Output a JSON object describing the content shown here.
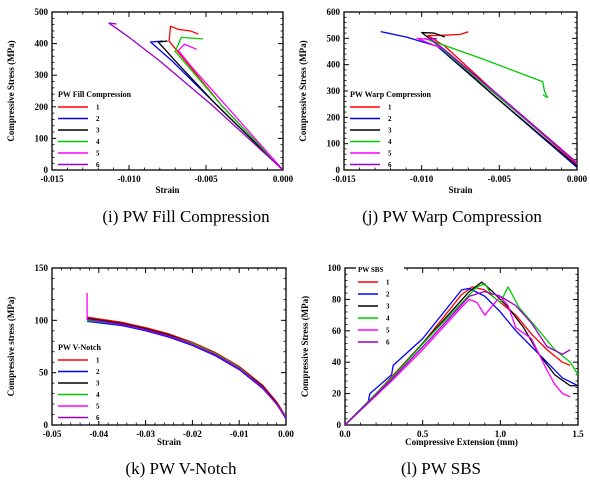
{
  "chart_data": [
    {
      "type": "line",
      "caption": "(i) PW Fill Compression",
      "legend_title": "PW Fill Compression",
      "xlabel": "Strain",
      "ylabel": "Compressive Stress (MPa)",
      "xlim": [
        -0.015,
        0.0
      ],
      "ylim": [
        0,
        500
      ],
      "xticks": [
        "-0.015",
        "-0.010",
        "-0.005",
        "0.000"
      ],
      "yticks": [
        "0",
        "100",
        "200",
        "300",
        "400",
        "500"
      ],
      "series": [
        {
          "name": "1",
          "color": "#ff0000",
          "points": [
            [
              0,
              0
            ],
            [
              -0.004,
              205
            ],
            [
              -0.0065,
              355
            ],
            [
              -0.0074,
              408
            ],
            [
              -0.0073,
              455
            ],
            [
              -0.0068,
              445
            ],
            [
              -0.006,
              440
            ],
            [
              -0.0055,
              430
            ]
          ]
        },
        {
          "name": "2",
          "color": "#0000ff",
          "points": [
            [
              0,
              0
            ],
            [
              -0.0045,
              215
            ],
            [
              -0.0072,
              345
            ],
            [
              -0.0086,
              405
            ],
            [
              -0.0078,
              408
            ]
          ]
        },
        {
          "name": "3",
          "color": "#000000",
          "points": [
            [
              0,
              0
            ],
            [
              -0.0044,
              210
            ],
            [
              -0.0068,
              335
            ],
            [
              -0.0081,
              405
            ],
            [
              -0.0075,
              408
            ]
          ]
        },
        {
          "name": "4",
          "color": "#00cc00",
          "points": [
            [
              0,
              0
            ],
            [
              -0.004,
              205
            ],
            [
              -0.0062,
              330
            ],
            [
              -0.007,
              375
            ],
            [
              -0.0066,
              420
            ],
            [
              -0.0062,
              418
            ],
            [
              -0.0052,
              415
            ]
          ]
        },
        {
          "name": "5",
          "color": "#ff00ff",
          "points": [
            [
              0,
              0
            ],
            [
              -0.0036,
              198
            ],
            [
              -0.006,
              330
            ],
            [
              -0.0068,
              378
            ],
            [
              -0.0064,
              398
            ],
            [
              -0.0056,
              382
            ]
          ]
        },
        {
          "name": "6",
          "color": "#9900cc",
          "points": [
            [
              0,
              0
            ],
            [
              -0.0046,
              205
            ],
            [
              -0.008,
              345
            ],
            [
              -0.01,
              420
            ],
            [
              -0.0113,
              465
            ],
            [
              -0.0108,
              462
            ]
          ]
        }
      ]
    },
    {
      "type": "line",
      "caption": "(j) PW Warp Compression",
      "legend_title": "PW Warp Compression",
      "xlabel": "Strain",
      "ylabel": "Compressive Stress (MPa)",
      "xlim": [
        -0.015,
        0.0
      ],
      "ylim": [
        0,
        600
      ],
      "xticks": [
        "-0.015",
        "-0.010",
        "-0.005",
        "0.000"
      ],
      "yticks": [
        "0",
        "100",
        "200",
        "300",
        "400",
        "500",
        "600"
      ],
      "series": [
        {
          "name": "1",
          "color": "#ff0000",
          "points": [
            [
              0,
              20
            ],
            [
              -0.005,
              280
            ],
            [
              -0.0085,
              470
            ],
            [
              -0.0096,
              510
            ],
            [
              -0.0085,
              512
            ],
            [
              -0.0075,
              515
            ],
            [
              -0.007,
              525
            ]
          ]
        },
        {
          "name": "2",
          "color": "#0000ff",
          "points": [
            [
              0,
              10
            ],
            [
              -0.005,
              265
            ],
            [
              -0.009,
              470
            ],
            [
              -0.011,
              505
            ],
            [
              -0.0126,
              525
            ],
            [
              -0.012,
              518
            ]
          ]
        },
        {
          "name": "3",
          "color": "#000000",
          "points": [
            [
              0,
              15
            ],
            [
              -0.0052,
              275
            ],
            [
              -0.0092,
              485
            ],
            [
              -0.01,
              522
            ],
            [
              -0.0092,
              520
            ],
            [
              -0.0085,
              505
            ]
          ]
        },
        {
          "name": "4",
          "color": "#00cc00",
          "points": [
            [
              0,
              25
            ],
            [
              -0.0052,
              285
            ],
            [
              -0.0092,
              485
            ],
            [
              -0.0098,
              500
            ],
            [
              -0.006,
              420
            ],
            [
              -0.0022,
              335
            ],
            [
              -0.0021,
              300
            ],
            [
              -0.0019,
              275
            ],
            [
              -0.0022,
              285
            ]
          ]
        },
        {
          "name": "5",
          "color": "#ff00ff",
          "points": [
            [
              0,
              25
            ],
            [
              -0.0048,
              270
            ],
            [
              -0.0086,
              460
            ],
            [
              -0.0103,
              500
            ],
            [
              -0.0094,
              495
            ]
          ]
        },
        {
          "name": "6",
          "color": "#9900cc",
          "points": [
            [
              0,
              28
            ],
            [
              -0.005,
              282
            ],
            [
              -0.0088,
              470
            ],
            [
              -0.0095,
              500
            ],
            [
              -0.009,
              498
            ]
          ]
        }
      ]
    },
    {
      "type": "line",
      "caption": "(k) PW V-Notch",
      "legend_title": "PW V-Notch",
      "xlabel": "Strain",
      "ylabel": "Compressive stress (MPa)",
      "xlim": [
        -0.05,
        0.0
      ],
      "ylim": [
        0,
        150
      ],
      "xticks": [
        "-0.05",
        "-0.04",
        "-0.03",
        "-0.02",
        "-0.01",
        "0.00"
      ],
      "yticks": [
        "0",
        "50",
        "100",
        "150"
      ],
      "series": [
        {
          "name": "1",
          "color": "#ff0000",
          "points": [
            [
              -0.0425,
              103
            ],
            [
              -0.035,
              98
            ],
            [
              -0.03,
              93
            ],
            [
              -0.025,
              87
            ],
            [
              -0.02,
              79
            ],
            [
              -0.015,
              69
            ],
            [
              -0.01,
              56
            ],
            [
              -0.005,
              38
            ],
            [
              -0.002,
              22
            ],
            [
              0,
              8
            ]
          ]
        },
        {
          "name": "2",
          "color": "#0000ff",
          "points": [
            [
              -0.0425,
              99
            ],
            [
              -0.035,
              95
            ],
            [
              -0.03,
              90
            ],
            [
              -0.025,
              84
            ],
            [
              -0.02,
              76
            ],
            [
              -0.015,
              66
            ],
            [
              -0.01,
              53
            ],
            [
              -0.005,
              35
            ],
            [
              -0.002,
              20
            ],
            [
              0,
              6
            ]
          ]
        },
        {
          "name": "3",
          "color": "#000000",
          "points": [
            [
              -0.0425,
              102
            ],
            [
              -0.035,
              97
            ],
            [
              -0.03,
              92
            ],
            [
              -0.025,
              86
            ],
            [
              -0.02,
              78
            ],
            [
              -0.015,
              68
            ],
            [
              -0.01,
              55
            ],
            [
              -0.005,
              37
            ],
            [
              -0.002,
              21
            ],
            [
              0,
              7
            ]
          ]
        },
        {
          "name": "4",
          "color": "#00cc00",
          "points": [
            [
              -0.0425,
              100
            ],
            [
              -0.035,
              96
            ],
            [
              -0.03,
              91
            ],
            [
              -0.025,
              85
            ],
            [
              -0.02,
              78
            ],
            [
              -0.015,
              68
            ],
            [
              -0.01,
              55
            ],
            [
              -0.005,
              36
            ],
            [
              -0.002,
              20
            ],
            [
              0,
              8
            ]
          ]
        },
        {
          "name": "5",
          "color": "#ff00ff",
          "points": [
            [
              -0.0425,
              126
            ],
            [
              -0.0425,
              101
            ],
            [
              -0.035,
              96
            ],
            [
              -0.03,
              91
            ],
            [
              -0.025,
              85
            ],
            [
              -0.02,
              77
            ],
            [
              -0.015,
              67
            ],
            [
              -0.01,
              54
            ],
            [
              -0.005,
              36
            ],
            [
              -0.002,
              20
            ],
            [
              0,
              7
            ]
          ]
        },
        {
          "name": "6",
          "color": "#9900cc",
          "points": [
            [
              -0.0425,
              101
            ],
            [
              -0.035,
              96
            ],
            [
              -0.03,
              91
            ],
            [
              -0.025,
              85
            ],
            [
              -0.02,
              77
            ],
            [
              -0.015,
              67
            ],
            [
              -0.01,
              54
            ],
            [
              -0.005,
              36
            ],
            [
              -0.002,
              20
            ],
            [
              0,
              7
            ]
          ]
        }
      ]
    },
    {
      "type": "line",
      "caption": "(l) PW SBS",
      "legend_title": "PW SBS",
      "xlabel": "Compressive Extension (mm)",
      "ylabel": "Compressive Stress (MPa)",
      "xlim": [
        0,
        1.5
      ],
      "ylim": [
        0,
        100
      ],
      "xticks": [
        "0.0",
        "0.5",
        "1.0",
        "1.5"
      ],
      "yticks": [
        "0",
        "20",
        "40",
        "60",
        "80",
        "100"
      ],
      "series": [
        {
          "name": "1",
          "color": "#ff0000",
          "points": [
            [
              0,
              0
            ],
            [
              0.2,
              20
            ],
            [
              0.5,
              52
            ],
            [
              0.75,
              83
            ],
            [
              0.82,
              88
            ],
            [
              0.9,
              86
            ],
            [
              1.0,
              78
            ],
            [
              1.1,
              70
            ],
            [
              1.2,
              58
            ],
            [
              1.3,
              48
            ],
            [
              1.4,
              40
            ],
            [
              1.45,
              38
            ]
          ]
        },
        {
          "name": "2",
          "color": "#0000ff",
          "points": [
            [
              0,
              0
            ],
            [
              0.15,
              15
            ],
            [
              0.16,
              20
            ],
            [
              0.3,
              32
            ],
            [
              0.31,
              38
            ],
            [
              0.5,
              55
            ],
            [
              0.75,
              86
            ],
            [
              0.8,
              87
            ],
            [
              0.9,
              82
            ],
            [
              1.0,
              72
            ],
            [
              1.1,
              60
            ],
            [
              1.2,
              50
            ],
            [
              1.3,
              40
            ],
            [
              1.4,
              30
            ],
            [
              1.5,
              25
            ]
          ]
        },
        {
          "name": "3",
          "color": "#000000",
          "points": [
            [
              0,
              0
            ],
            [
              0.3,
              30
            ],
            [
              0.5,
              52
            ],
            [
              0.8,
              85
            ],
            [
              0.88,
              91
            ],
            [
              0.95,
              85
            ],
            [
              1.05,
              75
            ],
            [
              1.15,
              62
            ],
            [
              1.25,
              45
            ],
            [
              1.35,
              32
            ],
            [
              1.45,
              25
            ],
            [
              1.5,
              25
            ]
          ]
        },
        {
          "name": "4",
          "color": "#00cc00",
          "points": [
            [
              0,
              0
            ],
            [
              0.3,
              30
            ],
            [
              0.55,
              57
            ],
            [
              0.85,
              88
            ],
            [
              0.9,
              90
            ],
            [
              0.95,
              82
            ],
            [
              1.0,
              78
            ],
            [
              1.05,
              88
            ],
            [
              1.12,
              75
            ],
            [
              1.25,
              60
            ],
            [
              1.35,
              48
            ],
            [
              1.45,
              40
            ],
            [
              1.5,
              32
            ]
          ]
        },
        {
          "name": "5",
          "color": "#ff00ff",
          "points": [
            [
              0,
              0
            ],
            [
              0.3,
              28
            ],
            [
              0.5,
              48
            ],
            [
              0.75,
              75
            ],
            [
              0.8,
              80
            ],
            [
              0.85,
              78
            ],
            [
              0.9,
              70
            ],
            [
              1.0,
              82
            ],
            [
              1.05,
              76
            ],
            [
              1.1,
              62
            ],
            [
              1.2,
              55
            ],
            [
              1.3,
              35
            ],
            [
              1.35,
              26
            ],
            [
              1.4,
              20
            ],
            [
              1.45,
              18
            ]
          ]
        },
        {
          "name": "6",
          "color": "#9900cc",
          "points": [
            [
              0,
              0
            ],
            [
              0.3,
              29
            ],
            [
              0.55,
              55
            ],
            [
              0.8,
              82
            ],
            [
              0.9,
              85
            ],
            [
              1.0,
              82
            ],
            [
              1.1,
              76
            ],
            [
              1.2,
              65
            ],
            [
              1.3,
              50
            ],
            [
              1.4,
              45
            ],
            [
              1.45,
              48
            ]
          ]
        }
      ]
    }
  ]
}
